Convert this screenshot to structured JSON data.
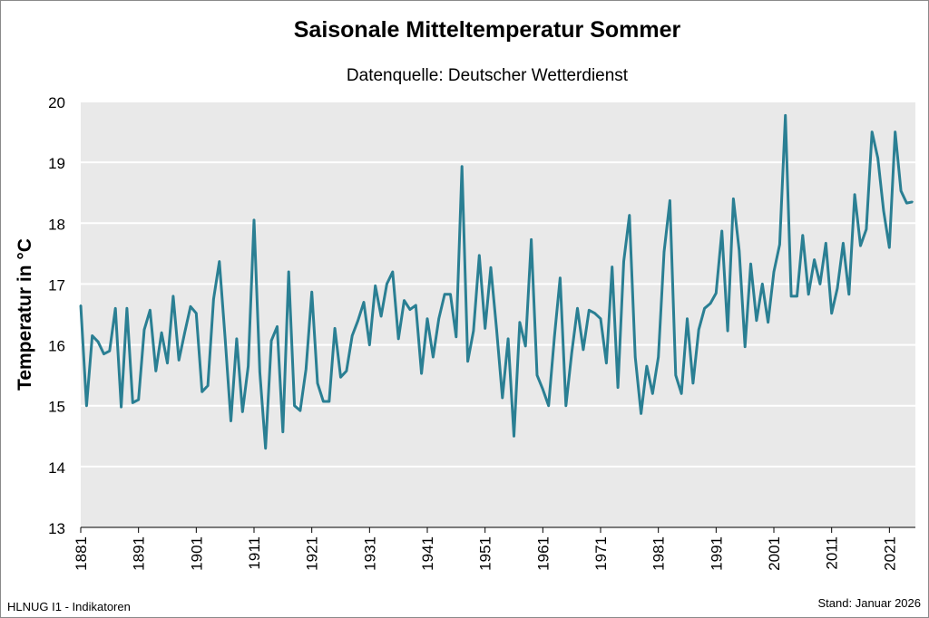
{
  "chart_data": {
    "type": "line",
    "title": "Saisonale Mitteltemperatur Sommer",
    "subtitle": "Datenquelle: Deutscher Wetterdienst",
    "xlabel": "",
    "ylabel": "Temperatur in °C",
    "xlim": [
      1881,
      2025
    ],
    "ylim": [
      13,
      20
    ],
    "yticks": [
      "13",
      "14",
      "15",
      "16",
      "17",
      "18",
      "19",
      "20"
    ],
    "xticks": [
      "1881",
      "1891",
      "1901",
      "1911",
      "1921",
      "1931",
      "1941",
      "1951",
      "1961",
      "1971",
      "1981",
      "1991",
      "2001",
      "2011",
      "2021"
    ],
    "grid": true,
    "line_color": "#2a7f93",
    "x_start": 1881,
    "values": [
      16.65,
      15.0,
      16.15,
      16.05,
      15.85,
      15.9,
      16.6,
      14.98,
      16.6,
      15.05,
      15.1,
      16.25,
      16.57,
      15.57,
      16.2,
      15.7,
      16.8,
      15.75,
      16.2,
      16.63,
      16.52,
      15.23,
      15.33,
      16.75,
      17.37,
      16.1,
      14.75,
      16.1,
      14.9,
      15.65,
      18.05,
      15.55,
      14.3,
      16.07,
      16.3,
      14.57,
      17.2,
      15.0,
      14.92,
      15.6,
      16.87,
      15.37,
      15.07,
      15.07,
      16.27,
      15.47,
      15.57,
      16.15,
      16.4,
      16.7,
      16.0,
      16.97,
      16.47,
      17.0,
      17.2,
      16.1,
      16.73,
      16.58,
      16.65,
      15.53,
      16.43,
      15.8,
      16.43,
      16.83,
      16.83,
      16.13,
      18.93,
      15.73,
      16.23,
      17.47,
      16.27,
      17.27,
      16.25,
      15.13,
      16.1,
      14.5,
      16.37,
      15.98,
      17.73,
      15.5,
      15.27,
      15.0,
      16.13,
      17.1,
      15.0,
      15.87,
      16.6,
      15.92,
      16.57,
      16.52,
      16.43,
      15.7,
      17.28,
      15.3,
      17.37,
      18.13,
      15.8,
      14.87,
      15.65,
      15.2,
      15.8,
      17.53,
      18.37,
      15.5,
      15.2,
      16.43,
      15.37,
      16.25,
      16.6,
      16.68,
      16.85,
      17.87,
      16.23,
      18.4,
      17.55,
      15.97,
      17.33,
      16.4,
      17.0,
      16.37,
      17.2,
      17.65,
      19.77,
      16.8,
      16.8,
      17.8,
      16.83,
      17.4,
      17.0,
      17.67,
      16.52,
      16.93,
      17.67,
      16.83,
      18.47,
      17.63,
      17.9,
      19.5,
      19.07,
      18.2,
      17.6,
      19.5,
      18.53,
      18.33,
      18.35
    ]
  },
  "footer": {
    "left": "HLNUG I1 - Indikatoren",
    "right": "Stand: Januar 2026"
  }
}
